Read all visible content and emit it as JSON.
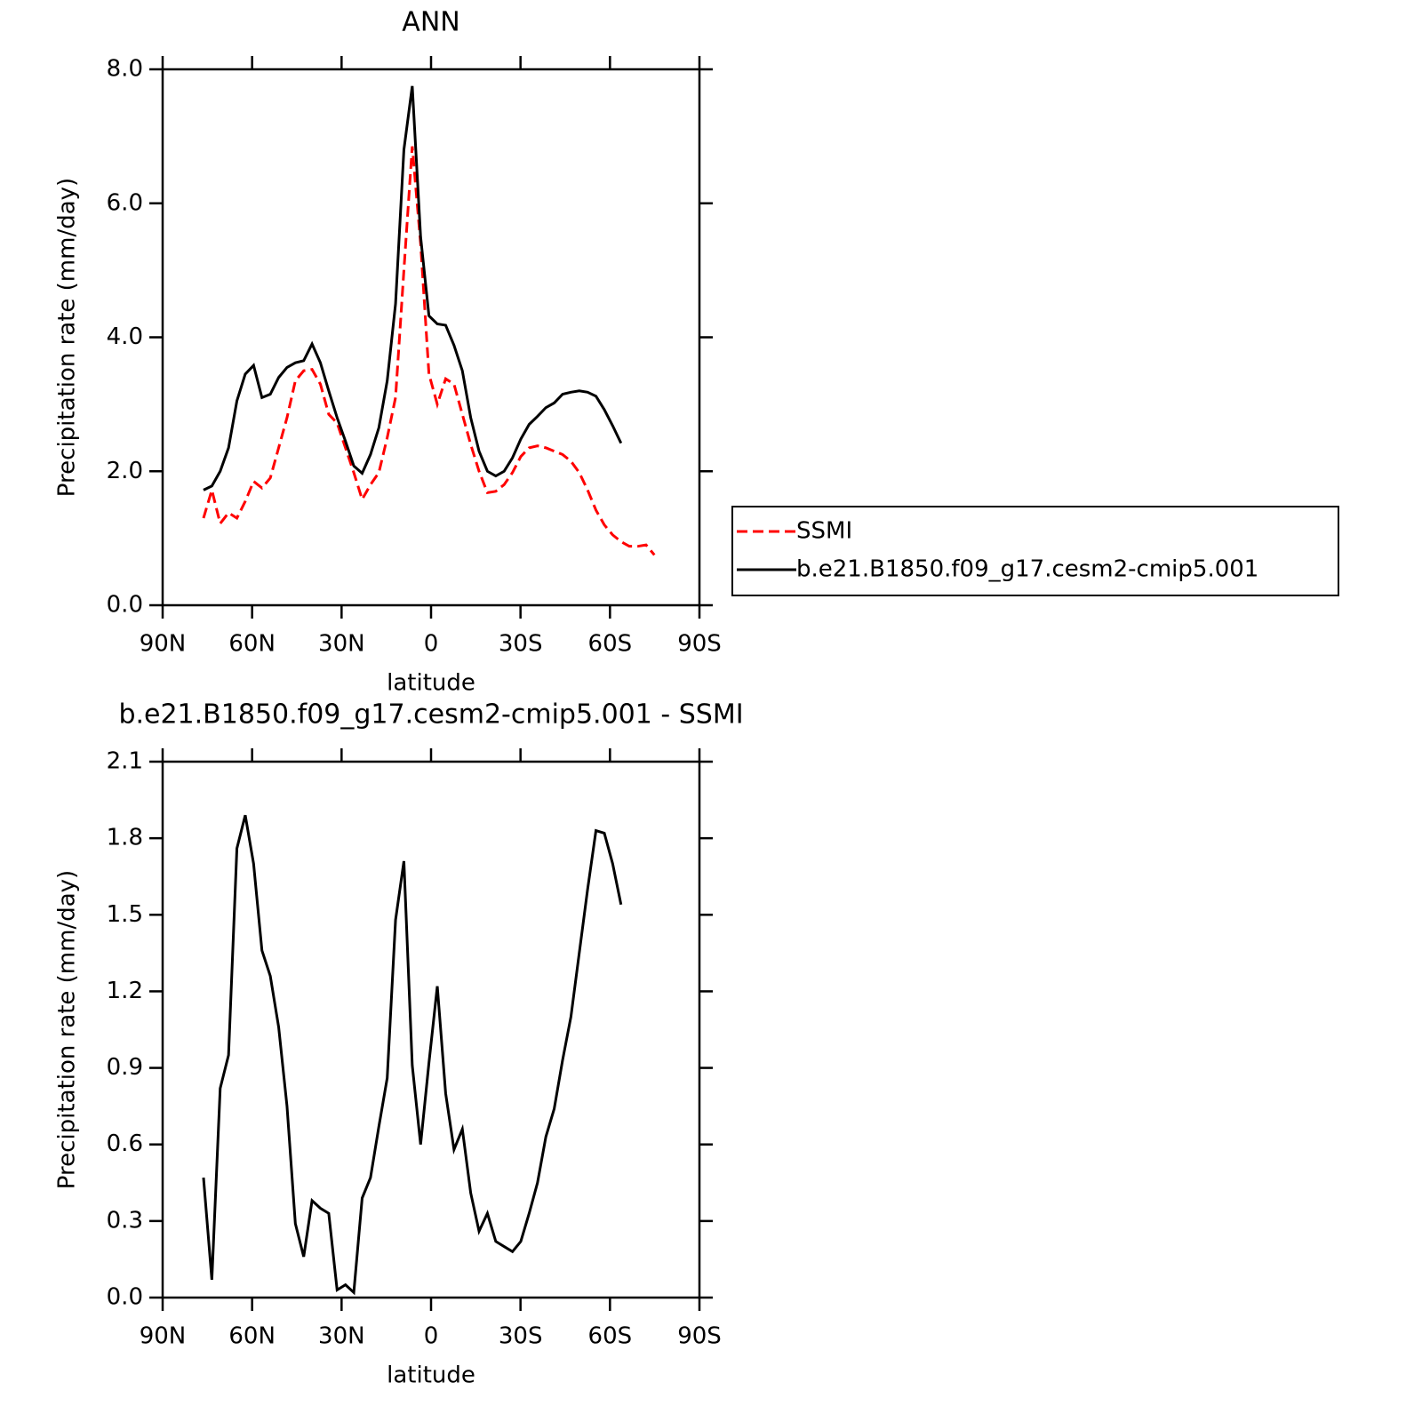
{
  "chart_data": [
    {
      "type": "line",
      "title": "ANN",
      "x_label": "latitude",
      "y_label": "Precipitation rate (mm/day)",
      "x": [
        76.3,
        73.5,
        70.7,
        67.9,
        65.1,
        62.3,
        59.5,
        56.7,
        53.9,
        51.1,
        48.3,
        45.5,
        42.7,
        39.9,
        37.1,
        34.3,
        31.5,
        28.7,
        25.9,
        23.1,
        20.3,
        17.5,
        14.7,
        11.9,
        9.1,
        6.3,
        3.5,
        0.7,
        -2.1,
        -4.9,
        -7.7,
        -10.5,
        -13.3,
        -16.1,
        -18.9,
        -21.7,
        -24.5,
        -27.3,
        -30.1,
        -32.9,
        -35.7,
        -38.5,
        -41.3,
        -44.1,
        -46.9,
        -49.7,
        -52.5,
        -55.3,
        -58.1,
        -60.9,
        -63.7,
        -66.5,
        -69.3,
        -72.1,
        -74.9
      ],
      "series": [
        {
          "name": "SSMI",
          "color": "#ff0000",
          "linestyle": "dashed",
          "values": [
            1.3,
            1.72,
            1.22,
            1.38,
            1.3,
            1.55,
            1.85,
            1.75,
            1.9,
            2.35,
            2.8,
            3.35,
            3.5,
            3.52,
            3.3,
            2.85,
            2.72,
            2.35,
            1.98,
            1.58,
            1.8,
            1.98,
            2.5,
            3.1,
            5.0,
            6.85,
            5.4,
            3.45,
            3.0,
            3.38,
            3.3,
            2.85,
            2.4,
            2.0,
            1.68,
            1.7,
            1.8,
            1.98,
            2.22,
            2.35,
            2.38,
            2.35,
            2.3,
            2.25,
            2.15,
            1.98,
            1.72,
            1.42,
            1.2,
            1.05,
            0.95,
            0.88,
            0.88,
            0.9,
            0.75
          ]
        },
        {
          "name": "b.e21.B1850.f09_g17.cesm2-cmip5.001",
          "color": "#000000",
          "linestyle": "solid",
          "values": [
            1.72,
            1.78,
            2.0,
            2.35,
            3.05,
            3.45,
            3.58,
            3.1,
            3.15,
            3.4,
            3.55,
            3.62,
            3.65,
            3.9,
            3.62,
            3.2,
            2.8,
            2.45,
            2.08,
            1.97,
            2.25,
            2.65,
            3.35,
            4.5,
            6.8,
            7.75,
            5.5,
            4.32,
            4.2,
            4.18,
            3.88,
            3.5,
            2.8,
            2.3,
            2.0,
            1.93,
            2.0,
            2.2,
            2.48,
            2.7,
            2.82,
            2.95,
            3.02,
            3.15,
            3.18,
            3.2,
            3.18,
            3.12,
            2.92,
            2.68,
            2.42,
            null,
            null,
            null,
            null
          ]
        }
      ],
      "xlim": [
        90,
        -90
      ],
      "xticks": [
        {
          "value": 90,
          "label": "90N"
        },
        {
          "value": 60,
          "label": "60N"
        },
        {
          "value": 30,
          "label": "30N"
        },
        0,
        {
          "value": -30,
          "label": "30S"
        },
        {
          "value": -60,
          "label": "60S"
        },
        {
          "value": -90,
          "label": "90S"
        }
      ],
      "ylim": [
        0,
        8
      ],
      "yticks": [
        {
          "value": 0,
          "label": "0.0"
        },
        {
          "value": 2,
          "label": "2.0"
        },
        {
          "value": 4,
          "label": "4.0"
        },
        {
          "value": 6,
          "label": "6.0"
        },
        {
          "value": 8,
          "label": "8.0"
        }
      ],
      "legend": "right"
    },
    {
      "type": "line",
      "title": "b.e21.B1850.f09_g17.cesm2-cmip5.001 - SSMI",
      "x_label": "latitude",
      "y_label": "Precipitation rate (mm/day)",
      "x": [
        76.3,
        73.5,
        70.7,
        67.9,
        65.1,
        62.3,
        59.5,
        56.7,
        53.9,
        51.1,
        48.3,
        45.5,
        42.7,
        39.9,
        37.1,
        34.3,
        31.5,
        28.7,
        25.9,
        23.1,
        20.3,
        17.5,
        14.7,
        11.9,
        9.1,
        6.3,
        3.5,
        0.7,
        -2.1,
        -4.9,
        -7.7,
        -10.5,
        -13.3,
        -16.1,
        -18.9,
        -21.7,
        -24.5,
        -27.3,
        -30.1,
        -32.9,
        -35.7,
        -38.5,
        -41.3,
        -44.1,
        -46.9,
        -49.7,
        -52.5,
        -55.3,
        -58.1,
        -60.9,
        -63.7
      ],
      "values": [
        0.47,
        0.07,
        0.82,
        0.95,
        1.76,
        1.89,
        1.7,
        1.36,
        1.26,
        1.06,
        0.75,
        0.29,
        0.16,
        0.38,
        0.35,
        0.33,
        0.03,
        0.05,
        0.02,
        0.39,
        0.47,
        0.67,
        0.86,
        1.48,
        1.71,
        0.91,
        0.6,
        0.92,
        1.22,
        0.8,
        0.58,
        0.66,
        0.41,
        0.26,
        0.33,
        0.22,
        0.2,
        0.18,
        0.22,
        0.33,
        0.45,
        0.63,
        0.74,
        0.93,
        1.1,
        1.35,
        1.6,
        1.83,
        1.82,
        1.7,
        1.54
      ],
      "color": "#000000",
      "xlim": [
        90,
        -90
      ],
      "xticks": [
        {
          "value": 90,
          "label": "90N"
        },
        {
          "value": 60,
          "label": "60N"
        },
        {
          "value": 30,
          "label": "30N"
        },
        0,
        {
          "value": -30,
          "label": "30S"
        },
        {
          "value": -60,
          "label": "60S"
        },
        {
          "value": -90,
          "label": "90S"
        }
      ],
      "ylim": [
        0,
        2.1
      ],
      "yticks": [
        {
          "value": 0,
          "label": "0.0"
        },
        0.3,
        0.6,
        0.9,
        1.2,
        1.5,
        1.8,
        2.1
      ]
    }
  ]
}
